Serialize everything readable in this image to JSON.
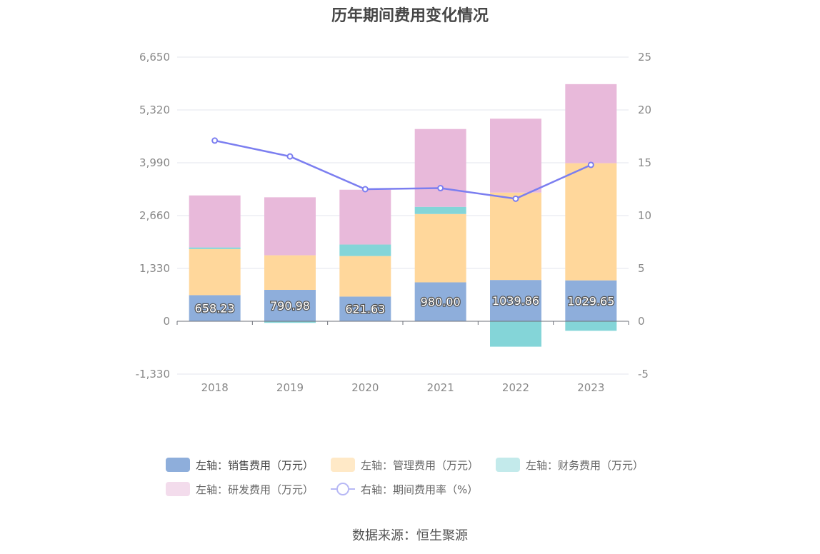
{
  "title": "历年期间费用变化情况",
  "source": "数据来源：恒生聚源",
  "legend": [
    {
      "label": "左轴：销售费用（万元）",
      "color": "#8eaedb",
      "type": "bar"
    },
    {
      "label": "左轴：管理费用（万元）",
      "color": "#ffd79b",
      "type": "bar"
    },
    {
      "label": "左轴：财务费用（万元）",
      "color": "#84d5d8",
      "type": "bar"
    },
    {
      "label": "左轴：研发费用（万元）",
      "color": "#e8b9da",
      "type": "bar"
    },
    {
      "label": "右轴：期间费用率（%）",
      "color": "#7b7ef0",
      "type": "line"
    }
  ],
  "chart_data": {
    "type": "bar",
    "categories": [
      "2018",
      "2019",
      "2020",
      "2021",
      "2022",
      "2023"
    ],
    "y_left": {
      "ticks": [
        "6,650",
        "5,320",
        "3,990",
        "2,660",
        "1,330",
        "0",
        "-1,330"
      ],
      "ylim": [
        -1330,
        6650
      ]
    },
    "y_right": {
      "ticks": [
        "25",
        "20",
        "15",
        "10",
        "5",
        "0",
        "-5"
      ],
      "ylim": [
        -5,
        25
      ]
    },
    "series": [
      {
        "name": "左轴：销售费用（万元）",
        "axis": "left",
        "stack": "a",
        "color": "#8eaedb",
        "values": [
          658.23,
          790.98,
          621.63,
          980.0,
          1039.86,
          1029.65
        ],
        "labels": [
          "658.23",
          "790.98",
          "621.63",
          "980.00",
          "1039.86",
          "1029.65"
        ]
      },
      {
        "name": "左轴：管理费用（万元）",
        "axis": "left",
        "stack": "a",
        "color": "#ffd79b",
        "values": [
          1160,
          870,
          1020,
          1720,
          2200,
          2950
        ]
      },
      {
        "name": "左轴：财务费用（万元）",
        "axis": "left",
        "stack": "a",
        "color": "#84d5d8",
        "values": [
          40,
          -40,
          290,
          180,
          -640,
          -240
        ]
      },
      {
        "name": "左轴：研发费用（万元）",
        "axis": "left",
        "stack": "a",
        "color": "#e8b9da",
        "values": [
          1310,
          1460,
          1380,
          1960,
          1860,
          1990
        ]
      },
      {
        "name": "右轴：期间费用率（%）",
        "axis": "right",
        "type": "line",
        "color": "#7b7ef0",
        "values": [
          17.1,
          15.6,
          12.5,
          12.6,
          11.6,
          14.8
        ]
      }
    ]
  }
}
